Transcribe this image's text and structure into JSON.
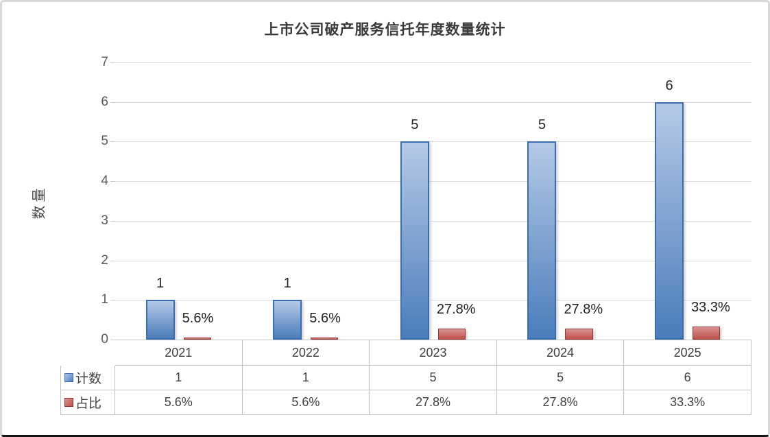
{
  "chart_data": {
    "type": "bar",
    "title": "上市公司破产服务信托年度数量统计",
    "xlabel": "",
    "ylabel": "数量",
    "categories": [
      "2021",
      "2022",
      "2023",
      "2024",
      "2025"
    ],
    "series": [
      {
        "name": "计数",
        "values": [
          1,
          1,
          5,
          5,
          6
        ],
        "labels": [
          "1",
          "1",
          "5",
          "5",
          "6"
        ],
        "color_top": "#b5c9e7",
        "color_bottom": "#4a7dbb",
        "border": "#3b6cb1"
      },
      {
        "name": "占比",
        "values": [
          0.056,
          0.056,
          0.278,
          0.278,
          0.333
        ],
        "labels": [
          "5.6%",
          "5.6%",
          "27.8%",
          "27.8%",
          "33.3%"
        ],
        "color_top": "#d69390",
        "color_bottom": "#c0504d",
        "border": "#963634"
      }
    ],
    "ylim": [
      0,
      7
    ],
    "yticks": [
      0,
      1,
      2,
      3,
      4,
      5,
      6,
      7
    ],
    "grid": true,
    "legend_position": "table-left"
  },
  "table": {
    "header_row": [
      "2021",
      "2022",
      "2023",
      "2024",
      "2025"
    ],
    "rows": [
      {
        "label": "计数",
        "values": [
          "1",
          "1",
          "5",
          "5",
          "6"
        ]
      },
      {
        "label": "占比",
        "values": [
          "5.6%",
          "5.6%",
          "27.8%",
          "27.8%",
          "33.3%"
        ]
      }
    ]
  },
  "colors": {
    "gridline": "#dcdcdc",
    "tick": "#c9c9c9",
    "table_border": "#bfbfbf",
    "axis_text": "#595959",
    "label_text": "#1f1f1f",
    "blue_accent": "#4f81bd",
    "red_accent": "#c0504d"
  }
}
